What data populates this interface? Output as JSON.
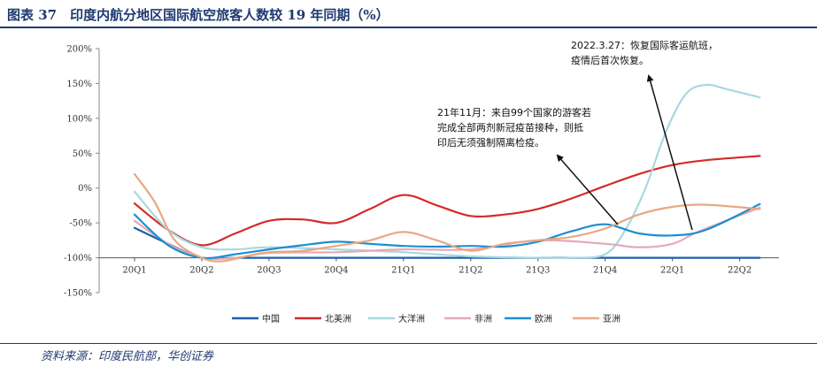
{
  "header": {
    "title": "图表 37　印度内航分地区国际航空旅客人数较 19 年同期（%）"
  },
  "footer": {
    "source": "资料来源：印度民航部，华创证券"
  },
  "chart_data": {
    "type": "line",
    "title": "图表 37　印度内航分地区国际航空旅客人数较 19 年同期（%）",
    "xlabel": "",
    "ylabel": "",
    "ylim": [
      -150,
      200
    ],
    "yticks": [
      200,
      150,
      100,
      50,
      0,
      -50,
      -100,
      -150
    ],
    "ytick_labels": [
      "200%",
      "150%",
      "100%",
      "50%",
      "0%",
      "-50%",
      "-100%",
      "-150%"
    ],
    "categories": [
      "20Q1",
      "20Q2",
      "20Q3",
      "20Q4",
      "21Q1",
      "21Q2",
      "21Q3",
      "21Q4",
      "22Q1",
      "22Q2"
    ],
    "x_range": [
      0,
      9.4
    ],
    "legend_position": "bottom",
    "series": [
      {
        "name": "中国",
        "color": "#1f5fa8",
        "x": [
          0,
          0.5,
          1,
          1.5,
          2,
          3,
          4,
          5,
          6,
          7,
          8,
          9.3
        ],
        "values": [
          -57,
          -80,
          -100,
          -100,
          -100,
          -100,
          -100,
          -100,
          -100,
          -100,
          -100,
          -100
        ]
      },
      {
        "name": "北美洲",
        "color": "#d42a2a",
        "x": [
          0,
          0.5,
          1,
          1.5,
          2,
          2.5,
          3,
          3.5,
          4,
          4.5,
          5,
          5.5,
          6,
          6.5,
          7,
          7.5,
          8,
          8.5,
          9.3
        ],
        "values": [
          -22,
          -60,
          -82,
          -65,
          -47,
          -45,
          -50,
          -30,
          -10,
          -25,
          -40,
          -38,
          -30,
          -15,
          3,
          20,
          33,
          40,
          46
        ]
      },
      {
        "name": "大洋洲",
        "color": "#a8d8e0",
        "x": [
          0,
          0.5,
          1,
          1.5,
          2,
          3,
          4,
          5,
          6,
          6.5,
          7,
          7.3,
          7.6,
          7.9,
          8.2,
          8.5,
          8.8,
          9.3
        ],
        "values": [
          -5,
          -60,
          -85,
          -88,
          -85,
          -88,
          -92,
          -98,
          -100,
          -100,
          -95,
          -60,
          0,
          80,
          135,
          148,
          142,
          130
        ]
      },
      {
        "name": "非洲",
        "color": "#e6a9b6",
        "x": [
          0,
          0.5,
          1,
          1.5,
          2,
          3,
          4,
          5,
          6,
          7,
          7.5,
          8,
          8.4,
          9.3
        ],
        "values": [
          -47,
          -80,
          -100,
          -100,
          -93,
          -92,
          -88,
          -88,
          -75,
          -80,
          -85,
          -80,
          -62,
          -28
        ]
      },
      {
        "name": "欧洲",
        "color": "#1b8fd1",
        "x": [
          0,
          0.5,
          1,
          1.5,
          2,
          2.5,
          3,
          3.5,
          4,
          4.5,
          5,
          5.5,
          6,
          6.5,
          7,
          7.5,
          8,
          8.5,
          9.3
        ],
        "values": [
          -38,
          -82,
          -100,
          -95,
          -88,
          -82,
          -77,
          -80,
          -83,
          -84,
          -83,
          -84,
          -77,
          -62,
          -52,
          -65,
          -68,
          -60,
          -23
        ]
      },
      {
        "name": "亚洲",
        "color": "#e8a882",
        "x": [
          0,
          0.3,
          0.6,
          1,
          1.3,
          1.7,
          2,
          2.5,
          3,
          3.5,
          4,
          4.5,
          5,
          5.5,
          6,
          6.5,
          7,
          7.5,
          8,
          8.5,
          9.3
        ],
        "values": [
          20,
          -20,
          -75,
          -100,
          -105,
          -97,
          -92,
          -90,
          -83,
          -75,
          -63,
          -75,
          -90,
          -80,
          -75,
          -70,
          -58,
          -38,
          -27,
          -24,
          -30
        ]
      }
    ],
    "annotations": [
      {
        "lines": [
          "2022.3.27：恢复国际客运航班，",
          "疫情后首次恢复。"
        ]
      },
      {
        "lines": [
          "21年11月：来自99个国家的游客若",
          "完成全部两剂新冠疫苗接种，则抵",
          "印后无须强制隔离检疫。"
        ]
      }
    ]
  }
}
